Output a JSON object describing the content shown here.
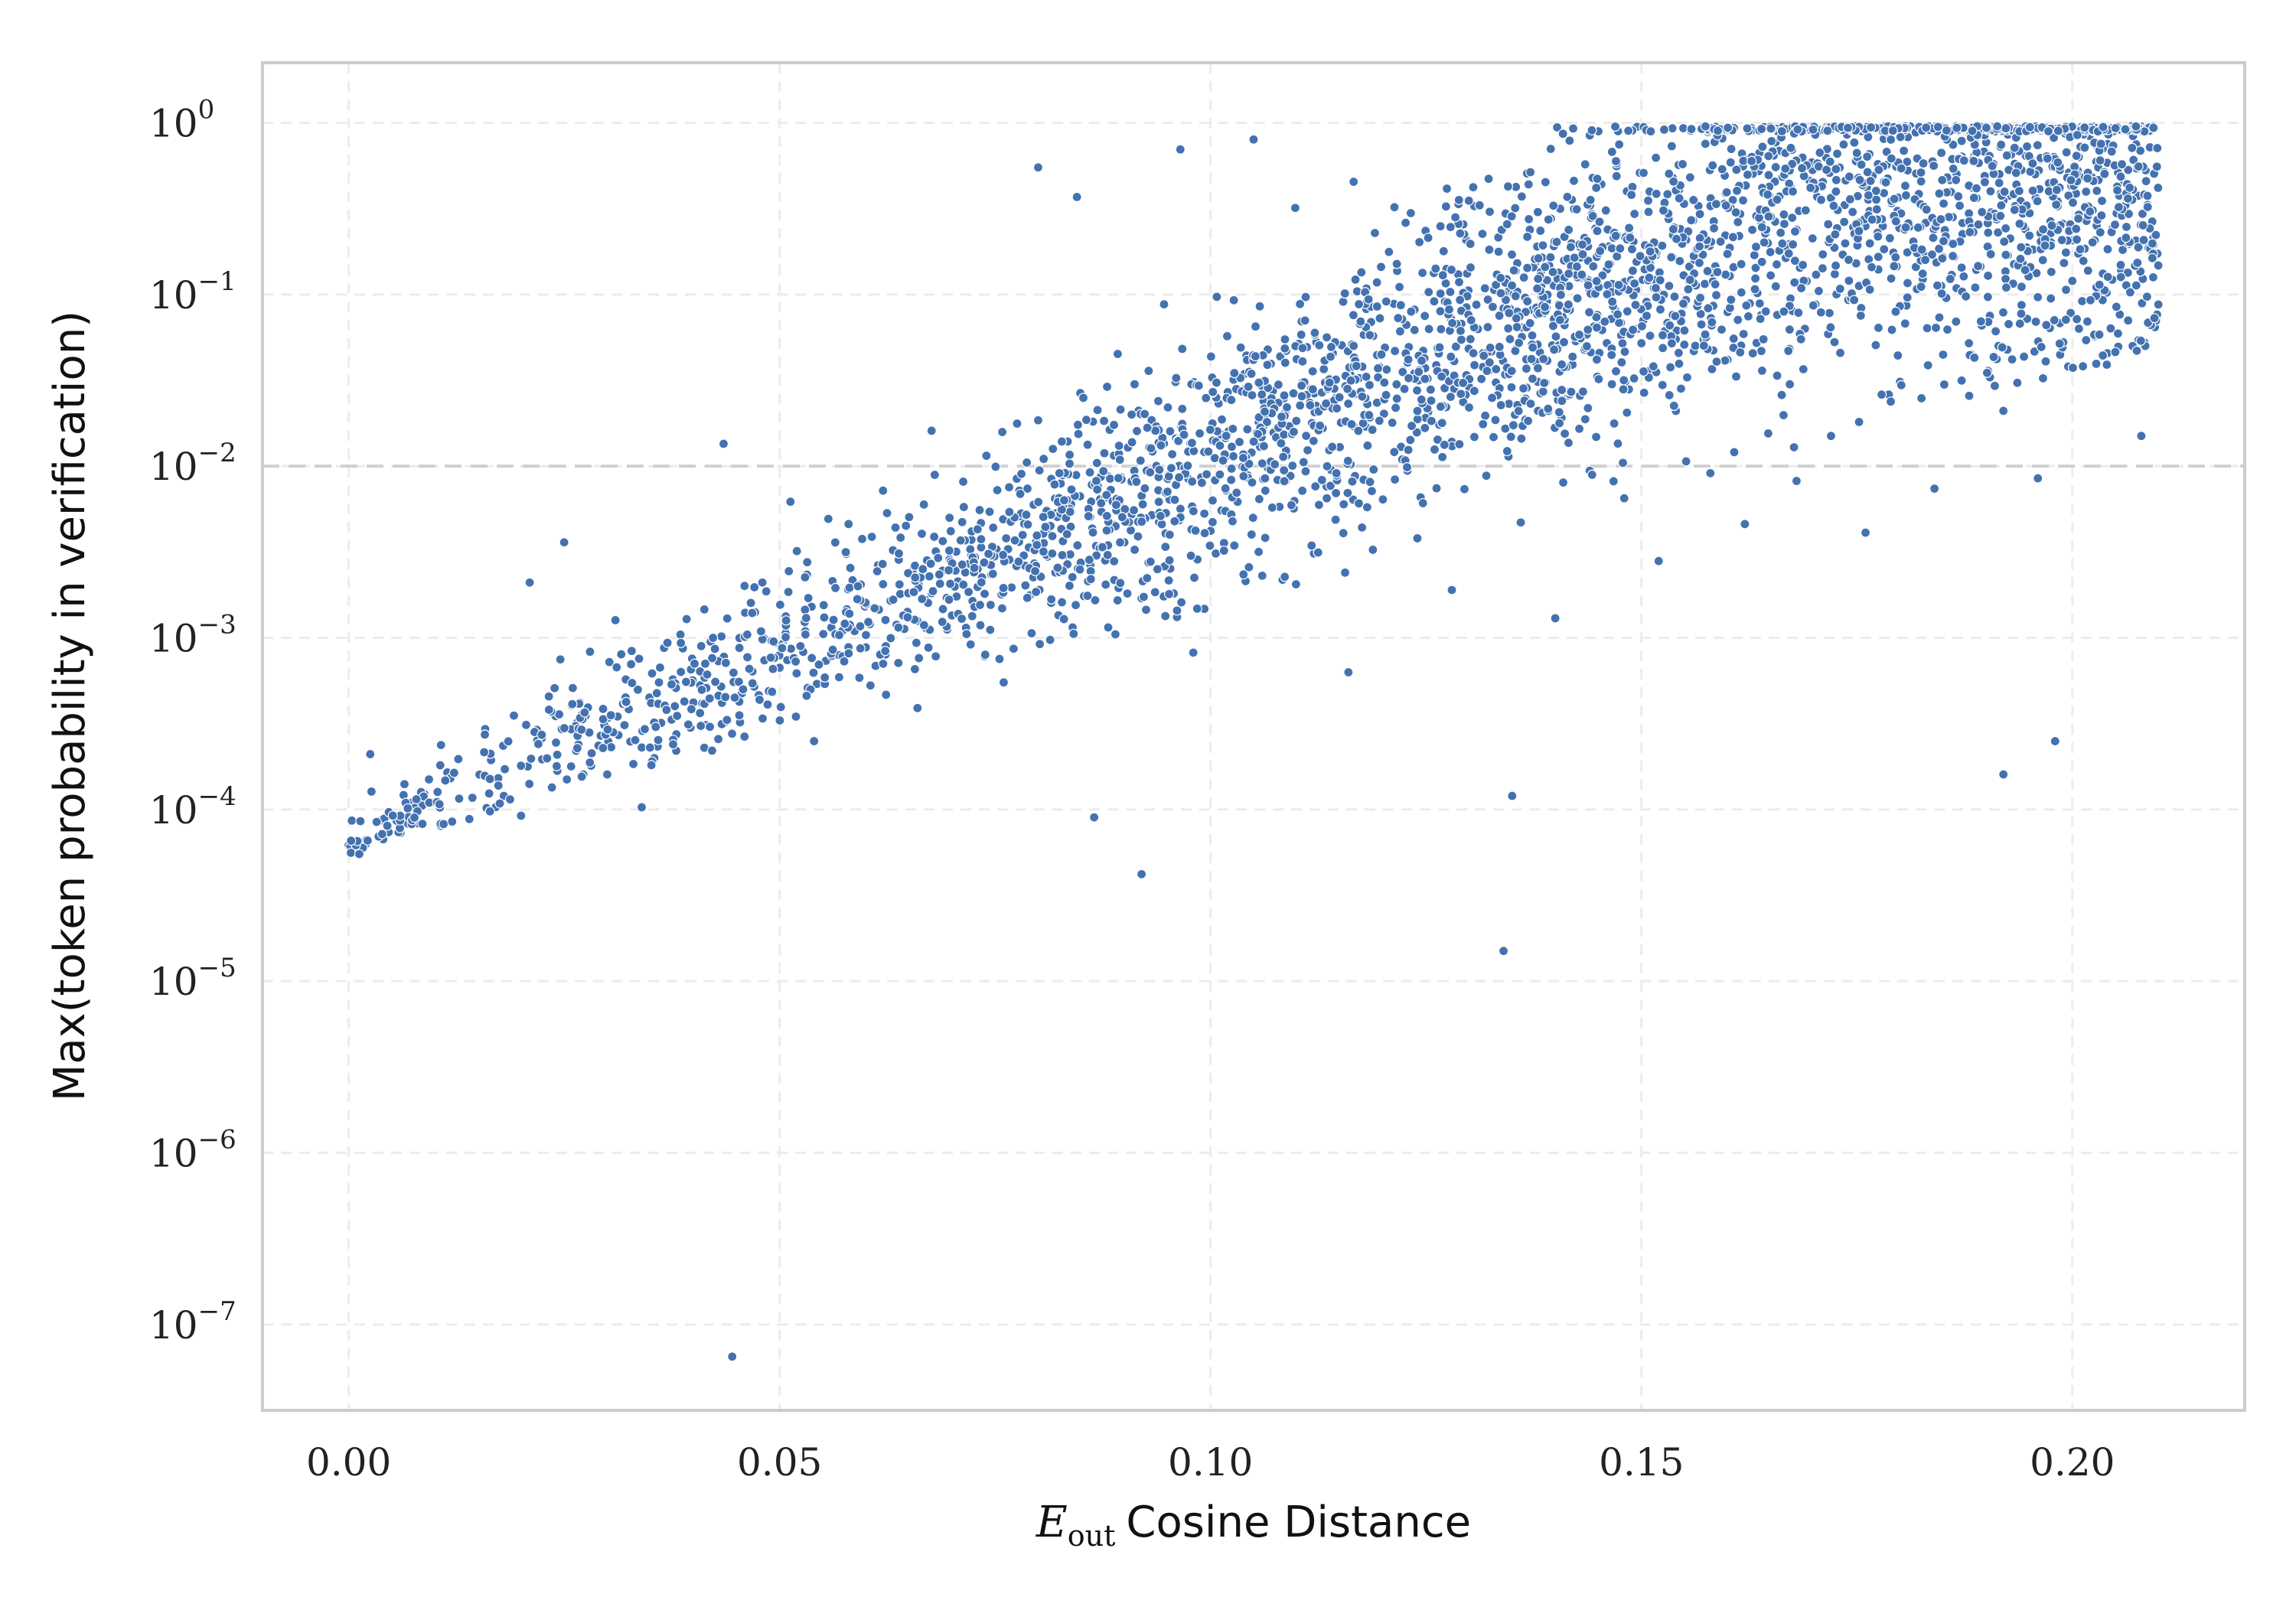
{
  "chart_data": {
    "type": "scatter",
    "xlabel_math": "E",
    "xlabel_sub": "out",
    "xlabel": "Cosine Distance",
    "ylabel": "Max(token probability in verification)",
    "xlim": [
      -0.01,
      0.22
    ],
    "ylim_log10": [
      -7.5,
      0.35
    ],
    "y_scale": "log",
    "x_ticks": [
      0.0,
      0.05,
      0.1,
      0.15,
      0.2
    ],
    "x_tick_labels": [
      "0.00",
      "0.05",
      "0.10",
      "0.15",
      "0.20"
    ],
    "y_ticks_exp": [
      0,
      -1,
      -2,
      -3,
      -4,
      -5,
      -6,
      -7
    ],
    "y_tick_base": "10",
    "y_tick_exp_labels": [
      "0",
      "−1",
      "−2",
      "−3",
      "−4",
      "−5",
      "−6",
      "−7"
    ],
    "grid": true,
    "reference_line_y": 0.01,
    "point_color": "#4472b0",
    "outliers": [
      {
        "x": 0.0445,
        "y": 6.5e-08
      },
      {
        "x": 0.134,
        "y": 1.5e-05
      },
      {
        "x": 0.092,
        "y": 4.2e-05
      },
      {
        "x": 0.135,
        "y": 0.00012
      },
      {
        "x": 0.192,
        "y": 0.00016
      },
      {
        "x": 0.198,
        "y": 0.00025
      },
      {
        "x": 0.0865,
        "y": 9e-05
      },
      {
        "x": 0.0025,
        "y": 0.00021
      },
      {
        "x": 0.0435,
        "y": 0.0135
      },
      {
        "x": 0.025,
        "y": 0.0036
      },
      {
        "x": 0.021,
        "y": 0.0021
      },
      {
        "x": 0.08,
        "y": 0.55
      },
      {
        "x": 0.0845,
        "y": 0.37
      },
      {
        "x": 0.0965,
        "y": 0.7
      },
      {
        "x": 0.105,
        "y": 0.8
      }
    ],
    "points": [
      [
        0.0,
        6.2e-05
      ],
      [
        0.002,
        6.3e-05
      ],
      [
        0.004,
        6.7e-05
      ],
      [
        0.006,
        7.3e-05
      ],
      [
        0.008,
        8.3e-05
      ],
      [
        0.01,
        0.00011
      ],
      [
        0.012,
        8.5e-05
      ],
      [
        0.014,
        8.8e-05
      ],
      [
        0.016,
        0.000102
      ],
      [
        0.018,
        0.00012
      ],
      [
        0.02,
        9.2e-05
      ],
      [
        0.022,
        0.000275
      ],
      [
        0.024,
        0.00035
      ],
      [
        0.026,
        0.00051
      ],
      [
        0.028,
        0.00083
      ],
      [
        0.03,
        0.00016
      ],
      [
        0.032,
        0.00031
      ],
      [
        0.034,
        0.000103
      ],
      [
        0.036,
        0.00055
      ],
      [
        0.038,
        0.00022
      ],
      [
        0.04,
        0.00042
      ],
      [
        0.042,
        0.00095
      ],
      [
        0.044,
        0.00033
      ],
      [
        0.046,
        0.0014
      ],
      [
        0.048,
        0.0021
      ],
      [
        0.05,
        0.00067
      ],
      [
        0.052,
        0.0032
      ],
      [
        0.054,
        0.00025
      ],
      [
        0.056,
        0.00115
      ],
      [
        0.058,
        0.0046
      ],
      [
        0.06,
        0.00088
      ],
      [
        0.062,
        0.0072
      ],
      [
        0.064,
        0.0018
      ],
      [
        0.066,
        0.00039
      ],
      [
        0.068,
        0.0089
      ],
      [
        0.07,
        0.00135
      ],
      [
        0.072,
        0.0027
      ],
      [
        0.074,
        0.0115
      ],
      [
        0.076,
        0.00055
      ],
      [
        0.078,
        0.0051
      ],
      [
        0.08,
        0.0185
      ],
      [
        0.082,
        0.0024
      ],
      [
        0.084,
        0.00115
      ],
      [
        0.086,
        0.0092
      ],
      [
        0.088,
        0.029
      ],
      [
        0.09,
        0.0036
      ],
      [
        0.092,
        0.0017
      ],
      [
        0.094,
        0.0062
      ],
      [
        0.096,
        0.0145
      ],
      [
        0.098,
        0.00082
      ],
      [
        0.1,
        0.0042
      ],
      [
        0.102,
        0.027
      ],
      [
        0.104,
        0.011
      ],
      [
        0.106,
        0.0023
      ],
      [
        0.108,
        0.0058
      ],
      [
        0.11,
        0.042
      ],
      [
        0.112,
        0.0031
      ],
      [
        0.114,
        0.0095
      ],
      [
        0.116,
        0.00063
      ],
      [
        0.118,
        0.017
      ],
      [
        0.12,
        0.0064
      ],
      [
        0.122,
        0.061
      ],
      [
        0.124,
        0.0038
      ],
      [
        0.126,
        0.0125
      ],
      [
        0.128,
        0.0019
      ],
      [
        0.13,
        0.029
      ],
      [
        0.132,
        0.0088
      ],
      [
        0.134,
        0.083
      ],
      [
        0.136,
        0.0047
      ],
      [
        0.138,
        0.021
      ],
      [
        0.14,
        0.0013
      ],
      [
        0.142,
        0.039
      ],
      [
        0.144,
        0.0094
      ],
      [
        0.146,
        0.14
      ],
      [
        0.148,
        0.0065
      ],
      [
        0.15,
        0.052
      ],
      [
        0.152,
        0.0028
      ],
      [
        0.154,
        0.021
      ],
      [
        0.156,
        0.27
      ],
      [
        0.158,
        0.0091
      ],
      [
        0.16,
        0.079
      ],
      [
        0.162,
        0.0046
      ],
      [
        0.164,
        0.036
      ],
      [
        0.166,
        0.18
      ],
      [
        0.168,
        0.0082
      ],
      [
        0.17,
        0.42
      ],
      [
        0.172,
        0.015
      ],
      [
        0.174,
        0.093
      ],
      [
        0.176,
        0.0041
      ],
      [
        0.178,
        0.25
      ],
      [
        0.18,
        0.031
      ],
      [
        0.182,
        0.62
      ],
      [
        0.184,
        0.0074
      ],
      [
        0.186,
        0.13
      ],
      [
        0.188,
        0.052
      ],
      [
        0.19,
        0.77
      ],
      [
        0.192,
        0.021
      ],
      [
        0.194,
        0.35
      ],
      [
        0.196,
        0.0085
      ],
      [
        0.198,
        0.56
      ],
      [
        0.2,
        0.12
      ],
      [
        0.202,
        0.84
      ],
      [
        0.204,
        0.039
      ],
      [
        0.206,
        0.45
      ],
      [
        0.208,
        0.015
      ],
      [
        0.209,
        0.72
      ]
    ]
  }
}
